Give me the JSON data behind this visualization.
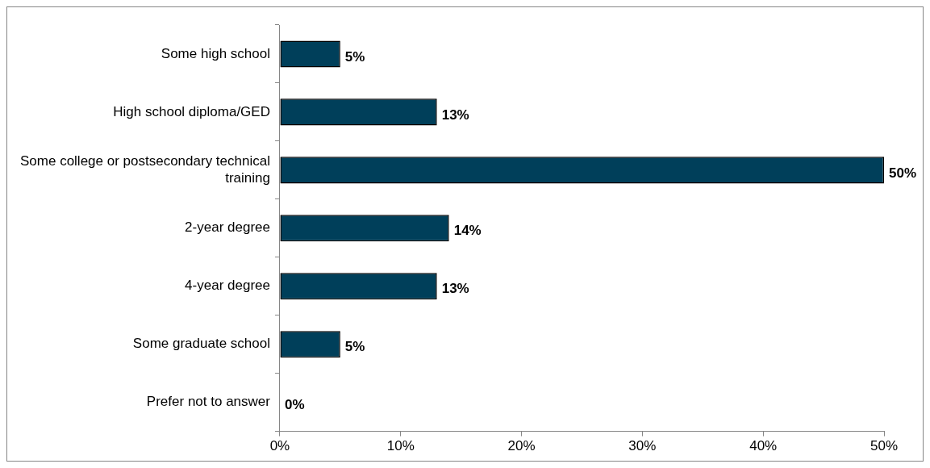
{
  "chart_data": {
    "type": "bar",
    "orientation": "horizontal",
    "categories": [
      "Some high school",
      "High school diploma/GED",
      "Some college or postsecondary technical training",
      "2-year degree",
      "4-year degree",
      "Some graduate school",
      "Prefer not to answer"
    ],
    "values": [
      5,
      13,
      50,
      14,
      13,
      5,
      0
    ],
    "color": "#003f5a",
    "xlim": [
      0,
      50
    ],
    "xticks": [
      {
        "value": 0,
        "label": "0%"
      },
      {
        "value": 10,
        "label": "10%"
      },
      {
        "value": 20,
        "label": "20%"
      },
      {
        "value": 30,
        "label": "30%"
      },
      {
        "value": 40,
        "label": "40%"
      },
      {
        "value": 50,
        "label": "50%"
      }
    ],
    "value_labels": [
      "5%",
      "13%",
      "50%",
      "14%",
      "13%",
      "5%",
      "0%"
    ],
    "legend": false
  }
}
